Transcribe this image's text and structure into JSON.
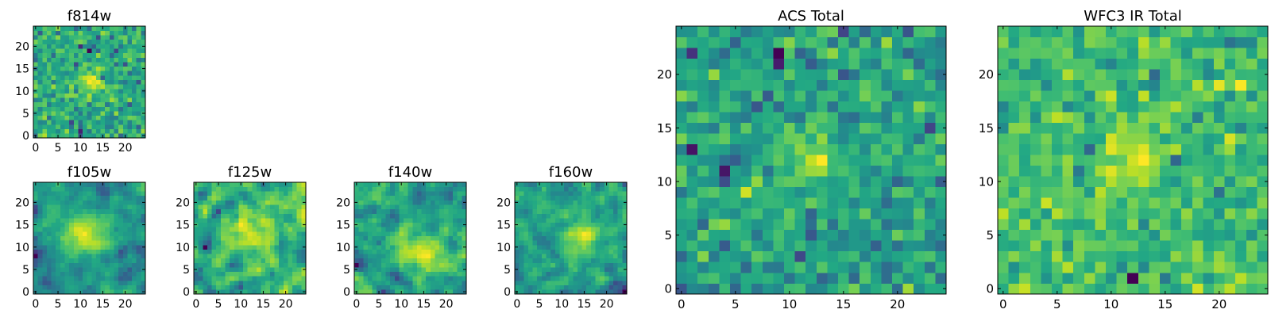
{
  "figure": {
    "description_panels": 7
  },
  "chart_data": [
    {
      "type": "heatmap",
      "title": "f814w",
      "rows": 25,
      "cols": 25,
      "x_ticks": [
        0,
        5,
        10,
        15,
        20
      ],
      "y_ticks": [
        0,
        5,
        10,
        15,
        20
      ],
      "xlim": [
        -0.5,
        24.5
      ],
      "ylim": [
        -0.5,
        24.5
      ],
      "colormap": "viridis",
      "seed": 814,
      "noise": 1.0,
      "blur": 0,
      "source_amp": 1.1,
      "source_x": 12,
      "source_y": 12,
      "source_sigma": 2.2
    },
    {
      "type": "heatmap",
      "title": "f105w",
      "rows": 25,
      "cols": 25,
      "x_ticks": [
        0,
        5,
        10,
        15,
        20
      ],
      "y_ticks": [
        0,
        5,
        10,
        15,
        20
      ],
      "xlim": [
        -0.5,
        24.5
      ],
      "ylim": [
        -0.5,
        24.5
      ],
      "colormap": "viridis",
      "seed": 105,
      "noise": 1.0,
      "blur": 1,
      "source_amp": 0.9,
      "source_x": 11,
      "source_y": 13,
      "source_sigma": 3.5
    },
    {
      "type": "heatmap",
      "title": "f125w",
      "rows": 25,
      "cols": 25,
      "x_ticks": [
        0,
        5,
        10,
        15,
        20
      ],
      "y_ticks": [
        0,
        5,
        10,
        15,
        20
      ],
      "xlim": [
        -0.5,
        24.5
      ],
      "ylim": [
        -0.5,
        24.5
      ],
      "colormap": "viridis",
      "seed": 125,
      "noise": 1.0,
      "blur": 1,
      "source_amp": 0.5,
      "source_x": 12,
      "source_y": 12,
      "source_sigma": 3.5
    },
    {
      "type": "heatmap",
      "title": "f140w",
      "rows": 25,
      "cols": 25,
      "x_ticks": [
        0,
        5,
        10,
        15,
        20
      ],
      "y_ticks": [
        0,
        5,
        10,
        15,
        20
      ],
      "xlim": [
        -0.5,
        24.5
      ],
      "ylim": [
        -0.5,
        24.5
      ],
      "colormap": "viridis",
      "seed": 140,
      "noise": 1.0,
      "blur": 1,
      "source_amp": 0.6,
      "source_x": 14,
      "source_y": 9,
      "source_sigma": 4.0
    },
    {
      "type": "heatmap",
      "title": "f160w",
      "rows": 25,
      "cols": 25,
      "x_ticks": [
        0,
        5,
        10,
        15,
        20
      ],
      "y_ticks": [
        0,
        5,
        10,
        15,
        20
      ],
      "xlim": [
        -0.5,
        24.5
      ],
      "ylim": [
        -0.5,
        24.5
      ],
      "colormap": "viridis",
      "seed": 160,
      "noise": 1.0,
      "blur": 1,
      "source_amp": 0.7,
      "source_x": 15,
      "source_y": 12,
      "source_sigma": 3.5
    },
    {
      "type": "heatmap",
      "title": "ACS Total",
      "rows": 25,
      "cols": 25,
      "x_ticks": [
        0,
        5,
        10,
        15,
        20
      ],
      "y_ticks": [
        0,
        5,
        10,
        15,
        20
      ],
      "xlim": [
        -0.5,
        24.5
      ],
      "ylim": [
        -0.5,
        24.5
      ],
      "colormap": "viridis",
      "seed": 2001,
      "noise": 1.0,
      "blur": 0,
      "source_amp": 1.0,
      "source_x": 12,
      "source_y": 12,
      "source_sigma": 1.8
    },
    {
      "type": "heatmap",
      "title": "WFC3 IR Total",
      "rows": 25,
      "cols": 25,
      "x_ticks": [
        0,
        5,
        10,
        15,
        20
      ],
      "y_ticks": [
        0,
        5,
        10,
        15,
        20
      ],
      "xlim": [
        -0.5,
        24.5
      ],
      "ylim": [
        -0.5,
        24.5
      ],
      "colormap": "viridis",
      "seed": 3001,
      "noise": 1.0,
      "blur": 0,
      "source_amp": 1.0,
      "source_x": 12,
      "source_y": 12,
      "source_sigma": 1.8
    }
  ]
}
